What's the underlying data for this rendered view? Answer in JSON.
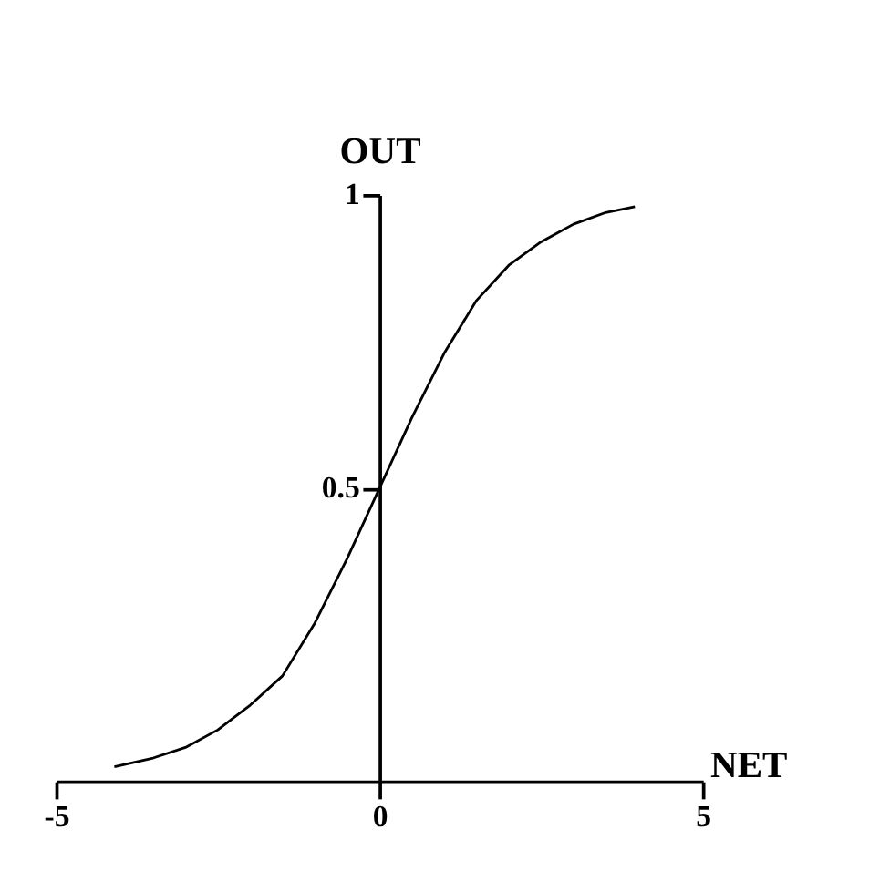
{
  "chart_data": {
    "type": "line",
    "xlabel": "NET",
    "ylabel": "OUT",
    "x": [
      -4.1,
      -3.5,
      -3,
      -2.5,
      -2,
      -1.5,
      -1,
      -0.5,
      0,
      0.5,
      1,
      1.5,
      2,
      2.5,
      3,
      3.5,
      3.95
    ],
    "series": [
      {
        "color": "#000000",
        "values": [
          0.025,
          0.04,
          0.058,
          0.088,
          0.13,
          0.18,
          0.27,
          0.38,
          0.5,
          0.62,
          0.73,
          0.82,
          0.88,
          0.92,
          0.95,
          0.97,
          0.98
        ]
      }
    ],
    "xlim": [
      -5,
      5
    ],
    "xticks": [
      -5,
      0,
      5
    ],
    "ylim": [
      0,
      1
    ],
    "yticks": [
      0.5,
      {
        "value": 1,
        "label": "1"
      }
    ],
    "grid": false,
    "marker": "none",
    "line_style": "solid"
  }
}
